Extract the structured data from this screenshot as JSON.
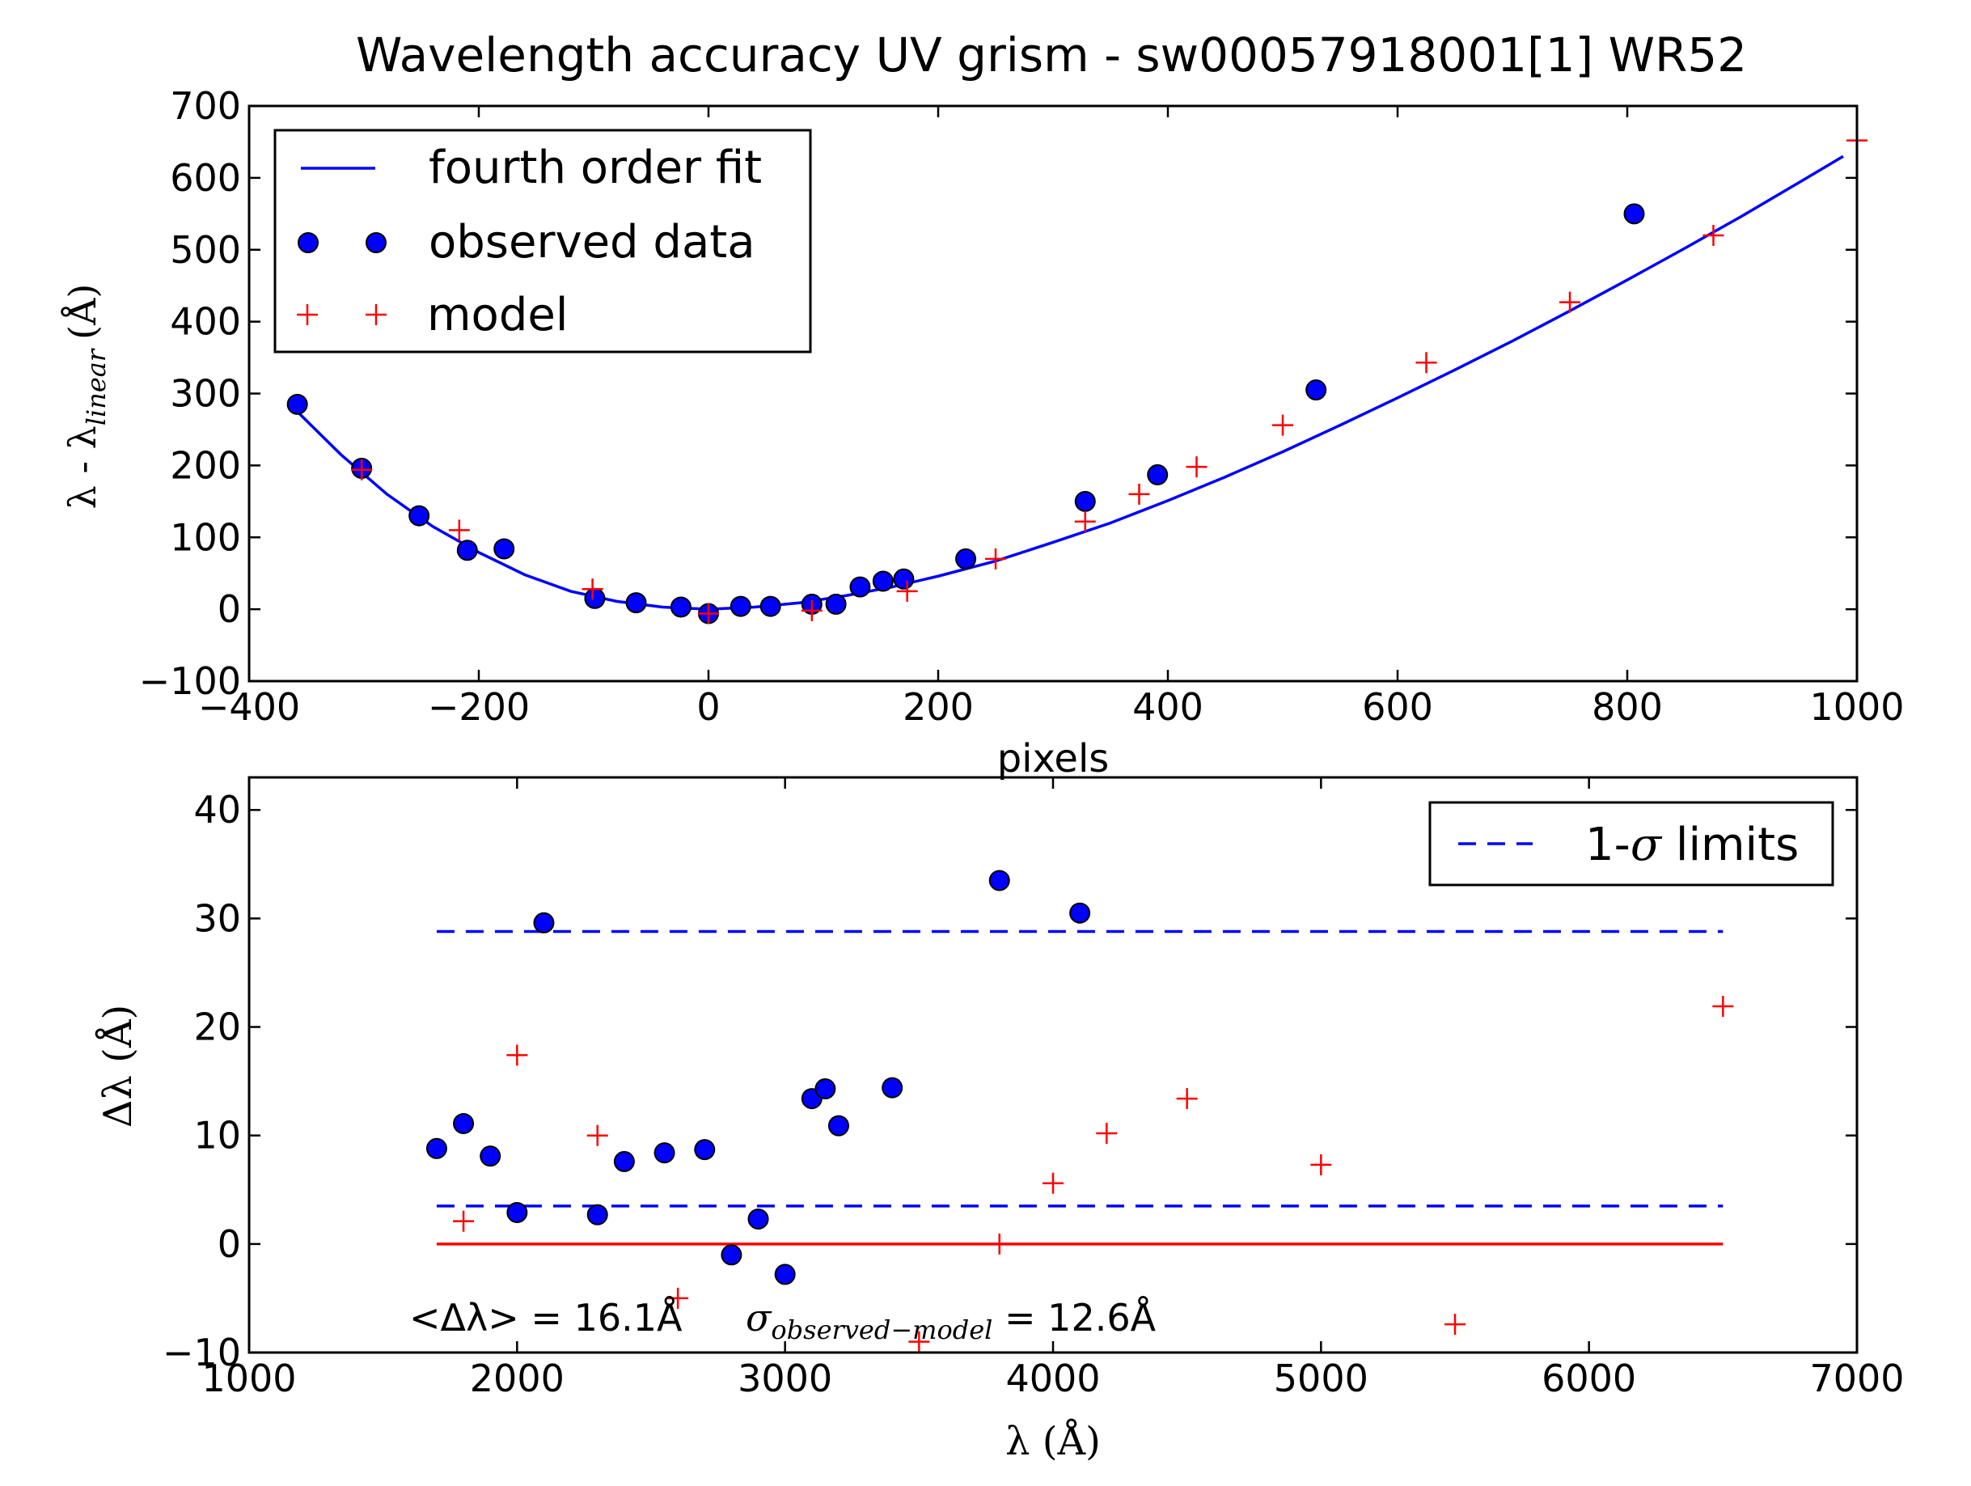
{
  "chart_data": [
    {
      "type": "scatter",
      "title": "Wavelength accuracy UV grism - sw00057918001[1] WR52",
      "xlabel": "pixels",
      "ylabel": {
        "main": "λ - λ",
        "subscript": "linear",
        "unit": "(Å)"
      },
      "xlim": [
        -400,
        1000
      ],
      "ylim": [
        -100,
        700
      ],
      "xticks": [
        -400,
        -200,
        0,
        200,
        400,
        600,
        800,
        1000
      ],
      "xtick_labels": [
        "−400",
        "−200",
        "0",
        "200",
        "400",
        "600",
        "800",
        "1000"
      ],
      "yticks": [
        -100,
        0,
        100,
        200,
        300,
        400,
        500,
        600,
        700
      ],
      "ytick_labels": [
        "−100",
        "0",
        "100",
        "200",
        "300",
        "400",
        "500",
        "600",
        "700"
      ],
      "legend": {
        "position": "upper-left",
        "entries": [
          "fourth order fit",
          "observed data",
          "model"
        ]
      },
      "series": [
        {
          "name": "fourth order fit",
          "kind": "line",
          "color": "#0000ff",
          "x": [
            -360,
            -320,
            -280,
            -240,
            -200,
            -160,
            -120,
            -80,
            -40,
            0,
            40,
            80,
            120,
            160,
            200,
            250,
            300,
            350,
            400,
            450,
            500,
            550,
            600,
            650,
            700,
            750,
            800,
            850,
            900,
            950,
            988
          ],
          "y": [
            278,
            215,
            160,
            115,
            79,
            48,
            25,
            11,
            3,
            0,
            3,
            9,
            19,
            31,
            46,
            67,
            93,
            120,
            151,
            184,
            219,
            256,
            294,
            333,
            373,
            415,
            458,
            502,
            547,
            594,
            630
          ]
        },
        {
          "name": "observed data",
          "kind": "markers",
          "marker": "circle",
          "color": "#0000ff",
          "x": [
            -358,
            -302,
            -252,
            -210,
            -178,
            -99,
            -63,
            -24,
            0,
            28,
            54,
            90,
            111,
            132,
            152,
            170,
            224,
            328,
            391,
            529,
            806
          ],
          "y": [
            285,
            196,
            130,
            82,
            84,
            15,
            9,
            3,
            -6,
            4,
            4,
            7,
            7,
            31,
            39,
            42,
            70,
            150,
            187,
            305,
            550
          ]
        },
        {
          "name": "model",
          "kind": "markers",
          "marker": "plus",
          "color": "#ff0000",
          "x": [
            -302,
            -217,
            -101,
            0,
            90,
            173,
            250,
            328,
            375,
            425,
            500,
            625,
            750,
            875,
            1000
          ],
          "y": [
            194,
            110,
            28,
            -6,
            -2,
            25,
            70,
            122,
            160,
            198,
            256,
            343,
            427,
            520,
            652
          ]
        }
      ]
    },
    {
      "type": "scatter",
      "title": "",
      "xlabel": "λ (Å)",
      "ylabel": "Δλ (Å)",
      "xlim": [
        1000,
        7000
      ],
      "ylim": [
        -10,
        43
      ],
      "xticks": [
        1000,
        2000,
        3000,
        4000,
        5000,
        6000,
        7000
      ],
      "xtick_labels": [
        "1000",
        "2000",
        "3000",
        "4000",
        "5000",
        "6000",
        "7000"
      ],
      "yticks": [
        -10,
        0,
        10,
        20,
        30,
        40
      ],
      "ytick_labels": [
        "−10",
        "0",
        "10",
        "20",
        "30",
        "40"
      ],
      "legend": {
        "position": "upper-right",
        "entries": [
          "1-σ limits"
        ]
      },
      "legend_text": {
        "pre": "1-",
        "sigma": "σ",
        "post": " limits"
      },
      "annotation": {
        "mean_label": "<Δλ> = 16.1Å",
        "sigma_symbol": "σ",
        "sigma_subscript": "observed−model",
        "sigma_value": " = 12.6Å"
      },
      "series": [
        {
          "name": "1-σ limits",
          "kind": "hline-dashed",
          "color": "#0000ff",
          "x": [
            1700,
            6500
          ],
          "y": [
            28.8,
            28.8
          ]
        },
        {
          "name": "1-σ limits",
          "kind": "hline-dashed",
          "color": "#0000ff",
          "x": [
            1700,
            6500
          ],
          "y": [
            3.5,
            3.5
          ]
        },
        {
          "name": "zero",
          "kind": "hline",
          "color": "#ff0000",
          "x": [
            1700,
            6500
          ],
          "y": [
            0,
            0
          ]
        },
        {
          "name": "observed",
          "kind": "markers",
          "marker": "circle",
          "color": "#0000ff",
          "x": [
            1700,
            1800,
            1900,
            2000,
            2100,
            2300,
            2400,
            2550,
            2700,
            2800,
            2900,
            3000,
            3100,
            3150,
            3200,
            3400,
            3800,
            4100
          ],
          "y": [
            8.8,
            11.1,
            8.1,
            2.9,
            29.6,
            2.7,
            7.6,
            8.4,
            8.7,
            -1,
            2.3,
            -2.8,
            13.4,
            14.3,
            10.9,
            14.4,
            33.5,
            30.5
          ]
        },
        {
          "name": "model",
          "kind": "markers",
          "marker": "plus",
          "color": "#ff0000",
          "x": [
            1800,
            2000,
            2300,
            2600,
            3500,
            3800,
            4000,
            4200,
            4500,
            5000,
            5500,
            6500
          ],
          "y": [
            2.1,
            17.4,
            10,
            -5,
            -9,
            0,
            5.6,
            10.2,
            13.4,
            7.3,
            -7.4,
            21.9
          ]
        }
      ]
    }
  ]
}
